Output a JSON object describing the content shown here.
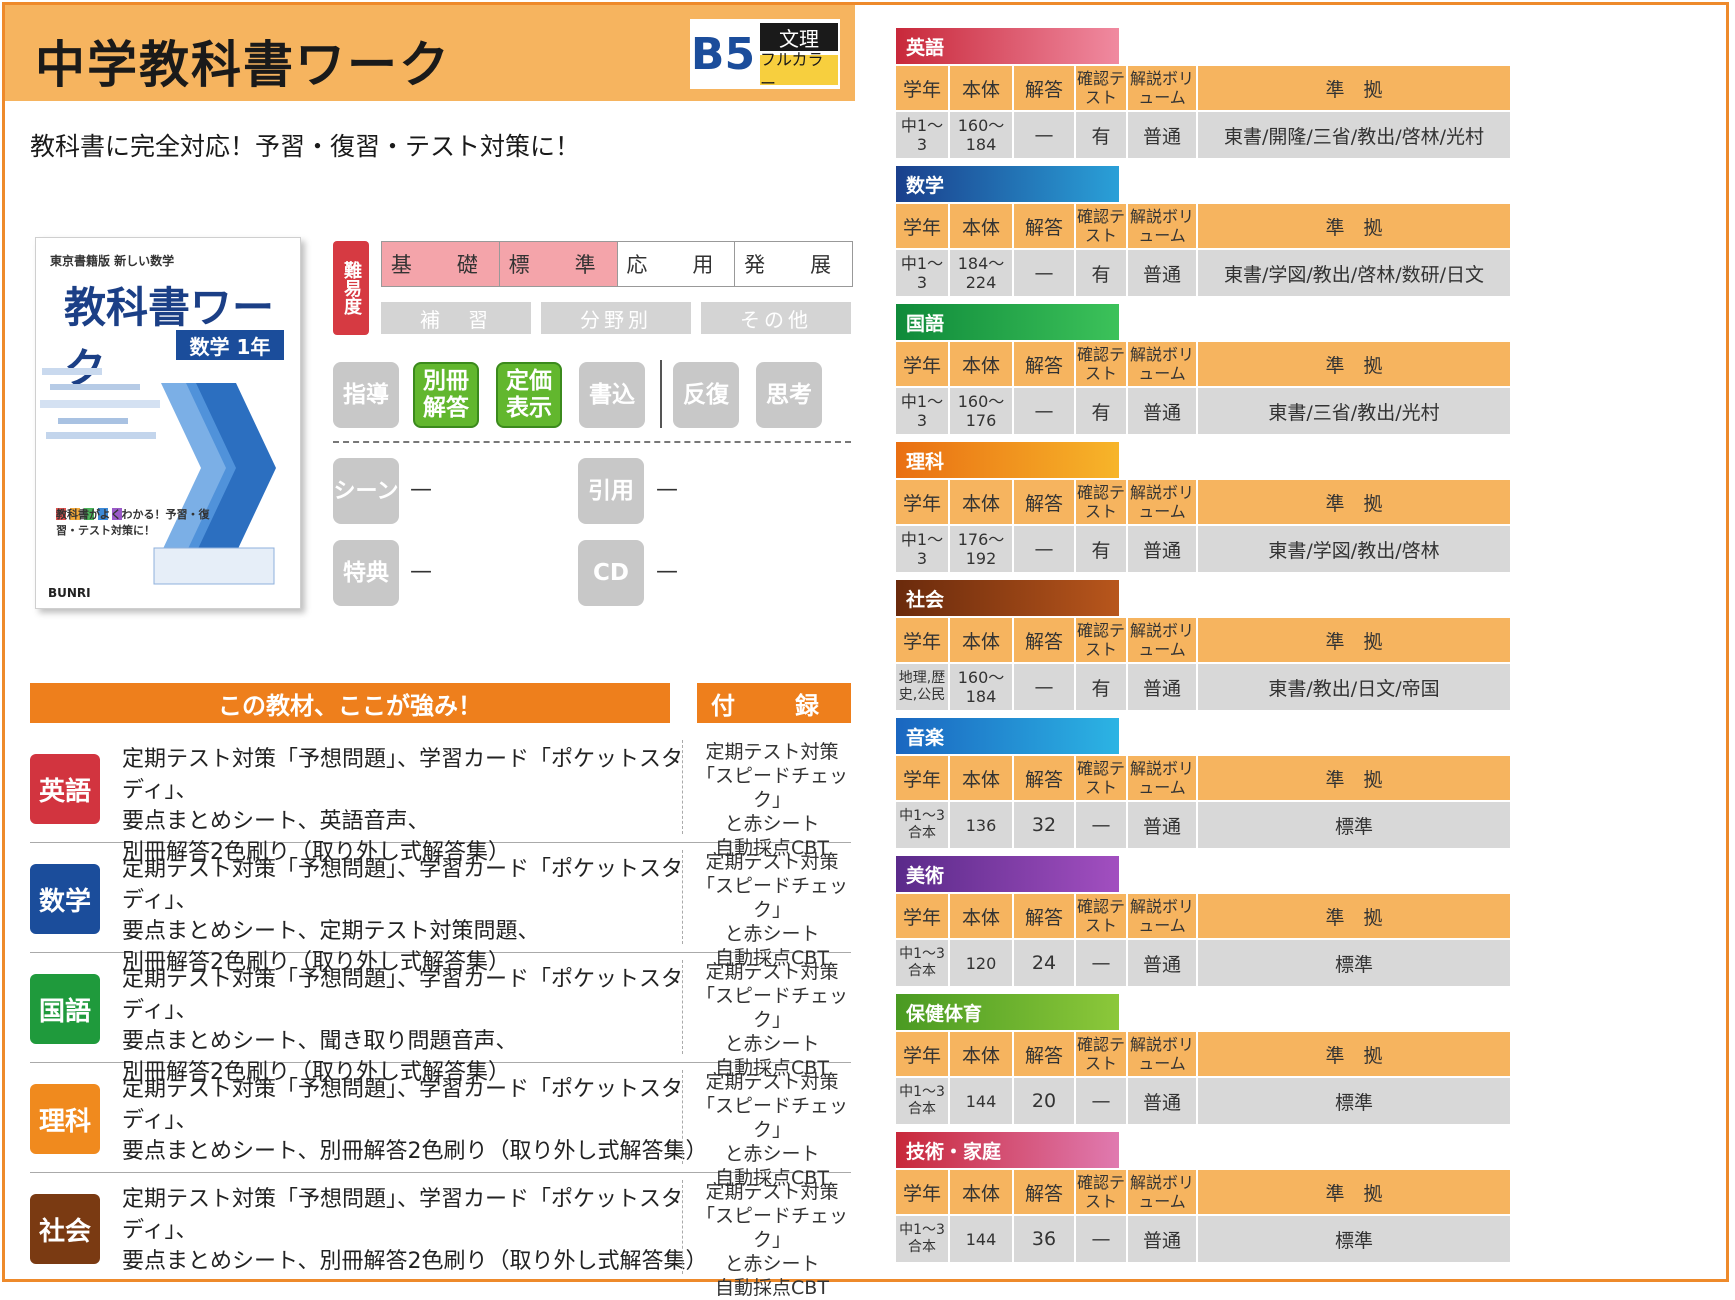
{
  "header": {
    "title": "中学教科書ワーク",
    "format_size": "B5",
    "format_type": "文理",
    "format_color": "フルカラー",
    "subtitle": "教科書に完全対応！予習・復習・テスト対策に！"
  },
  "cover": {
    "top_text": "東京書籍版 新しい数学",
    "title": "教科書ワーク",
    "subject": "数学 1年",
    "catch": "教科書がよくわかる！予習・復習・テスト対策に！",
    "publisher": "BUNRI"
  },
  "difficulty": {
    "label": "難易度",
    "levels": [
      {
        "label": "基　礎",
        "active": true
      },
      {
        "label": "標　準",
        "active": true
      },
      {
        "label": "応　用",
        "active": false
      },
      {
        "label": "発　展",
        "active": false
      }
    ],
    "categories": [
      "補　習",
      "分野別",
      "その他"
    ]
  },
  "features": [
    {
      "label": "指導",
      "active": false
    },
    {
      "label": "別冊解答",
      "active": true
    },
    {
      "label": "定価表示",
      "active": true
    },
    {
      "label": "書込",
      "active": false
    },
    {
      "label": "反復",
      "active": false
    },
    {
      "label": "思考",
      "active": false
    }
  ],
  "extras": [
    {
      "label": "シーン",
      "value": "—"
    },
    {
      "label": "引用",
      "value": "—"
    },
    {
      "label": "特典",
      "value": "—"
    },
    {
      "label": "CD",
      "value": "—"
    }
  ],
  "strengths": {
    "heading": "この教材、ここが強み！",
    "appendix_heading": "付　録",
    "rows": [
      {
        "subject": "英語",
        "color": "#d2343f",
        "text": [
          "定期テスト対策「予想問題」、学習カード「ポケットスタディ」、",
          "要点まとめシート、英語音声、",
          "別冊解答2色刷り（取り外し式解答集）"
        ],
        "appendix": [
          "定期テスト対策",
          "「スピードチェック」",
          "と赤シート",
          "自動採点CBT"
        ]
      },
      {
        "subject": "数学",
        "color": "#1b4d9b",
        "text": [
          "定期テスト対策「予想問題」、学習カード「ポケットスタディ」、",
          "要点まとめシート、定期テスト対策問題、",
          "別冊解答2色刷り（取り外し式解答集）"
        ],
        "appendix": [
          "定期テスト対策",
          "「スピードチェック」",
          "と赤シート",
          "自動採点CBT"
        ]
      },
      {
        "subject": "国語",
        "color": "#1f9a3c",
        "text": [
          "定期テスト対策「予想問題」、学習カード「ポケットスタディ」、",
          "要点まとめシート、聞き取り問題音声、",
          "別冊解答2色刷り（取り外し式解答集）"
        ],
        "appendix": [
          "定期テスト対策",
          "「スピードチェック」",
          "と赤シート",
          "自動採点CBT"
        ]
      },
      {
        "subject": "理科",
        "color": "#f08a1e",
        "text": [
          "定期テスト対策「予想問題」、学習カード「ポケットスタディ」、",
          "要点まとめシート、別冊解答2色刷り（取り外し式解答集）"
        ],
        "appendix": [
          "定期テスト対策",
          "「スピードチェック」",
          "と赤シート",
          "自動採点CBT"
        ]
      },
      {
        "subject": "社会",
        "color": "#7a3a12",
        "text": [
          "定期テスト対策「予想問題」、学習カード「ポケットスタディ」、",
          "要点まとめシート、別冊解答2色刷り（取り外し式解答集）"
        ],
        "appendix": [
          "定期テスト対策",
          "「スピードチェック」",
          "と赤シート",
          "自動採点CBT"
        ]
      }
    ]
  },
  "table_headers": [
    "学年",
    "本体",
    "解答",
    "確認テスト",
    "解説ボリューム",
    "準　拠"
  ],
  "subjects": [
    {
      "name": "英語",
      "color_a": "#c8283a",
      "color_b": "#f08aa0",
      "grade": "中1〜3",
      "pages": "160〜184",
      "answers": "—",
      "check": "有",
      "volume": "普通",
      "compliance": "東書/開隆/三省/教出/啓林/光村"
    },
    {
      "name": "数学",
      "color_a": "#1a3f8c",
      "color_b": "#2aa0d8",
      "grade": "中1〜3",
      "pages": "184〜224",
      "answers": "—",
      "check": "有",
      "volume": "普通",
      "compliance": "東書/学図/教出/啓林/数研/日文"
    },
    {
      "name": "国語",
      "color_a": "#0f8a3a",
      "color_b": "#3cc25a",
      "grade": "中1〜3",
      "pages": "160〜176",
      "answers": "—",
      "check": "有",
      "volume": "普通",
      "compliance": "東書/三省/教出/光村"
    },
    {
      "name": "理科",
      "color_a": "#e96f12",
      "color_b": "#f7b52a",
      "grade": "中1〜3",
      "pages": "176〜192",
      "answers": "—",
      "check": "有",
      "volume": "普通",
      "compliance": "東書/学図/教出/啓林"
    },
    {
      "name": "社会",
      "color_a": "#6a2a0c",
      "color_b": "#b8561c",
      "grade": "地理,歴史,公民",
      "pages": "160〜184",
      "answers": "—",
      "check": "有",
      "volume": "普通",
      "compliance": "東書/教出/日文/帝国"
    },
    {
      "name": "音楽",
      "color_a": "#1a66c0",
      "color_b": "#2cb4e4",
      "grade": "中1〜3合本",
      "pages": "136",
      "answers": "32",
      "check": "—",
      "volume": "普通",
      "compliance": "標準"
    },
    {
      "name": "美術",
      "color_a": "#5a2a8a",
      "color_b": "#a24fc0",
      "grade": "中1〜3合本",
      "pages": "120",
      "answers": "24",
      "check": "—",
      "volume": "普通",
      "compliance": "標準"
    },
    {
      "name": "保健体育",
      "color_a": "#4a9a22",
      "color_b": "#8cc83a",
      "grade": "中1〜3合本",
      "pages": "144",
      "answers": "20",
      "check": "—",
      "volume": "普通",
      "compliance": "標準"
    },
    {
      "name": "技術・家庭",
      "color_a": "#c8283a",
      "color_b": "#e07ab0",
      "grade": "中1〜3合本",
      "pages": "144",
      "answers": "36",
      "check": "—",
      "volume": "普通",
      "compliance": "標準"
    }
  ]
}
